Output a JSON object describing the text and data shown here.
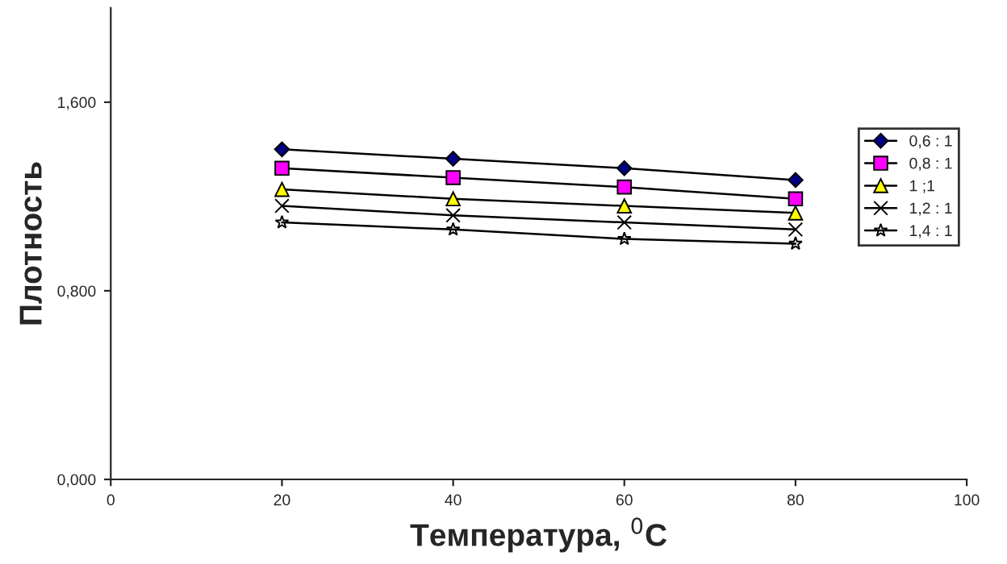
{
  "chart_data": {
    "type": "line",
    "xlabel": "Температура, $^{0}$C",
    "ylabel": "Плотность",
    "x": [
      20,
      40,
      60,
      80
    ],
    "series": [
      {
        "name": "0,6 : 1",
        "color": "#000080",
        "marker": "diamond",
        "values": [
          1.4,
          1.36,
          1.32,
          1.27
        ]
      },
      {
        "name": "0,8 : 1",
        "color": "#ff00ff",
        "marker": "square",
        "values": [
          1.32,
          1.28,
          1.24,
          1.19
        ]
      },
      {
        "name": "1 ;1",
        "color": "#ffff00",
        "marker": "triangle",
        "values": [
          1.23,
          1.19,
          1.16,
          1.13
        ]
      },
      {
        "name": "1,2 : 1",
        "color": "#000000",
        "marker": "cross",
        "values": [
          1.16,
          1.12,
          1.09,
          1.06
        ]
      },
      {
        "name": "1,4 : 1",
        "color": "#000000",
        "marker": "star",
        "values": [
          1.09,
          1.06,
          1.02,
          1.0
        ]
      }
    ],
    "xlim": [
      0,
      100
    ],
    "xticks": [
      0,
      20,
      40,
      60,
      80,
      100
    ],
    "ylim": [
      0,
      2
    ],
    "yticks": [
      {
        "value": 0,
        "label": "0,000"
      },
      {
        "value": 0.8,
        "label": "0,800"
      },
      {
        "value": 1.6,
        "label": "1,600"
      }
    ],
    "legend": "right",
    "grid": false,
    "line_style": "solid"
  }
}
